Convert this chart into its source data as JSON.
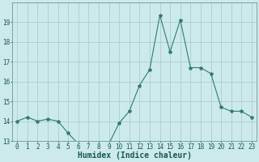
{
  "x": [
    0,
    1,
    2,
    3,
    4,
    5,
    6,
    7,
    8,
    9,
    10,
    11,
    12,
    13,
    14,
    15,
    16,
    17,
    18,
    19,
    20,
    21,
    22,
    23
  ],
  "y": [
    14.0,
    14.2,
    14.0,
    14.1,
    14.0,
    13.4,
    12.85,
    12.85,
    12.7,
    12.85,
    13.9,
    14.5,
    15.8,
    16.6,
    19.35,
    17.5,
    19.1,
    16.7,
    16.7,
    16.4,
    14.7,
    14.5,
    14.5,
    14.2
  ],
  "line_color": "#2e7d6e",
  "marker": "*",
  "marker_size": 3,
  "bg_color": "#cceaea",
  "grid_color": "#b0cccc",
  "xlabel": "Humidex (Indice chaleur)",
  "ylim": [
    13,
    20
  ],
  "yticks": [
    13,
    14,
    15,
    16,
    17,
    18,
    19
  ],
  "xticks": [
    0,
    1,
    2,
    3,
    4,
    5,
    6,
    7,
    8,
    9,
    10,
    11,
    12,
    13,
    14,
    15,
    16,
    17,
    18,
    19,
    20,
    21,
    22,
    23
  ],
  "xlabel_fontsize": 7,
  "tick_fontsize": 5.5
}
